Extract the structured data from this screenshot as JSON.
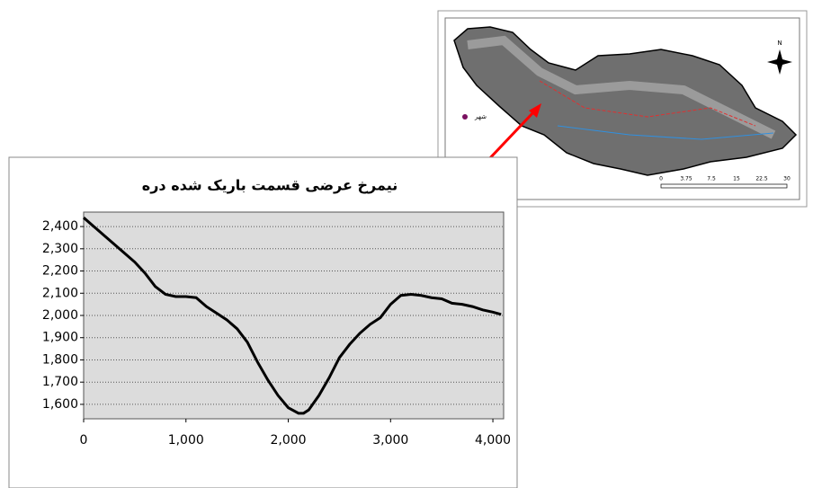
{
  "chart_data": {
    "type": "line",
    "title": "نیمرخ عرضی قسمت باریک شده دره",
    "x": [
      0,
      100,
      200,
      300,
      400,
      500,
      600,
      700,
      800,
      900,
      1000,
      1100,
      1200,
      1300,
      1400,
      1500,
      1600,
      1700,
      1800,
      1900,
      2000,
      2100,
      2150,
      2200,
      2300,
      2400,
      2500,
      2600,
      2700,
      2800,
      2900,
      3000,
      3100,
      3200,
      3300,
      3400,
      3500,
      3600,
      3700,
      3800,
      3900,
      4000,
      4080
    ],
    "series": [
      {
        "color": "#000000",
        "values": [
          2440,
          2400,
          2360,
          2320,
          2280,
          2240,
          2190,
          2130,
          2095,
          2085,
          2085,
          2080,
          2040,
          2010,
          1980,
          1940,
          1880,
          1790,
          1710,
          1640,
          1585,
          1560,
          1560,
          1575,
          1640,
          1720,
          1810,
          1870,
          1920,
          1960,
          1990,
          2050,
          2090,
          2095,
          2090,
          2080,
          2075,
          2055,
          2050,
          2040,
          2025,
          2015,
          2005
        ]
      }
    ],
    "xlim": [
      0,
      4105
    ],
    "ylim": [
      1535,
      2465
    ],
    "xticks": [
      0,
      {
        "value": 1000,
        "label": "1,000"
      },
      {
        "value": 2000,
        "label": "2,000"
      },
      {
        "value": 3000,
        "label": "3,000"
      },
      {
        "value": 4000,
        "label": "4,000"
      }
    ],
    "yticks": [
      {
        "value": 1600,
        "label": "1,600"
      },
      {
        "value": 1700,
        "label": "1,700"
      },
      {
        "value": 1800,
        "label": "1,800"
      },
      {
        "value": 1900,
        "label": "1,900"
      },
      {
        "value": 2000,
        "label": "2,000"
      },
      {
        "value": 2100,
        "label": "2,100"
      },
      {
        "value": 2200,
        "label": "2,200"
      },
      {
        "value": 2300,
        "label": "2,300"
      },
      {
        "value": 2400,
        "label": "2,400"
      }
    ],
    "grid": true
  },
  "map": {
    "north": "N",
    "legend": [
      "شهر"
    ],
    "scale_labels": [
      "0",
      "3.75",
      "7.5",
      "15",
      "22.5",
      "30"
    ]
  }
}
